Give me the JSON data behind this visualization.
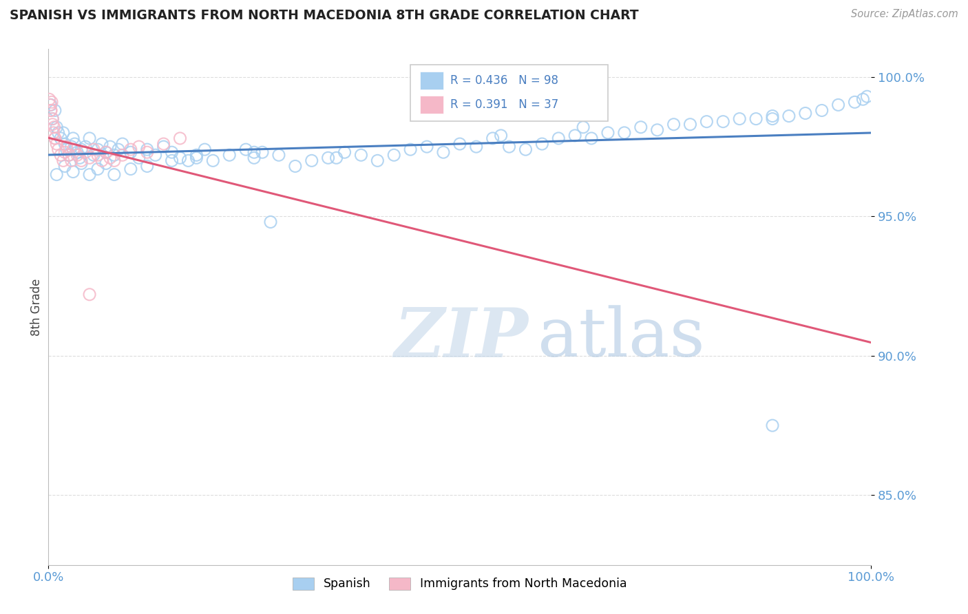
{
  "title": "SPANISH VS IMMIGRANTS FROM NORTH MACEDONIA 8TH GRADE CORRELATION CHART",
  "source_text": "Source: ZipAtlas.com",
  "ylabel": "8th Grade",
  "watermark_zip": "ZIP",
  "watermark_atlas": "atlas",
  "xlim": [
    0.0,
    100.0
  ],
  "ylim": [
    82.5,
    101.0
  ],
  "yticks": [
    85.0,
    90.0,
    95.0,
    100.0
  ],
  "xticks": [
    0.0,
    100.0
  ],
  "legend_r_blue": "R = 0.436",
  "legend_n_blue": "N = 98",
  "legend_r_pink": "R = 0.391",
  "legend_n_pink": "N = 37",
  "blue_color": "#A8CFF0",
  "pink_color": "#F5B8C8",
  "blue_line_color": "#4A7FC1",
  "pink_line_color": "#E05878",
  "title_color": "#222222",
  "axis_label_color": "#444444",
  "tick_color": "#5B9BD5",
  "grid_color": "#DDDDDD",
  "watermark_zip_color": "#C0D4E8",
  "watermark_atlas_color": "#A8C4E0",
  "blue_x": [
    0.3,
    0.5,
    0.8,
    1.0,
    1.2,
    1.5,
    1.8,
    2.0,
    2.2,
    2.5,
    2.8,
    3.0,
    3.2,
    3.5,
    3.8,
    4.0,
    4.5,
    5.0,
    5.5,
    6.0,
    6.5,
    7.0,
    7.5,
    8.0,
    8.5,
    9.0,
    10.0,
    11.0,
    12.0,
    13.0,
    14.0,
    15.0,
    16.0,
    17.0,
    18.0,
    19.0,
    20.0,
    22.0,
    24.0,
    25.0,
    26.0,
    28.0,
    30.0,
    32.0,
    34.0,
    36.0,
    38.0,
    40.0,
    42.0,
    44.0,
    46.0,
    48.0,
    50.0,
    52.0,
    54.0,
    56.0,
    58.0,
    60.0,
    62.0,
    64.0,
    66.0,
    68.0,
    70.0,
    72.0,
    74.0,
    76.0,
    78.0,
    80.0,
    82.0,
    84.0,
    86.0,
    88.0,
    90.0,
    92.0,
    94.0,
    96.0,
    98.0,
    99.0,
    99.5,
    1.0,
    2.0,
    3.0,
    4.0,
    5.0,
    6.0,
    7.0,
    8.0,
    10.0,
    12.0,
    15.0,
    18.0,
    25.0,
    35.0,
    55.0,
    65.0,
    88.0,
    27.0,
    88.0
  ],
  "blue_y": [
    99.0,
    98.5,
    98.8,
    98.2,
    98.0,
    97.8,
    98.0,
    97.6,
    97.4,
    97.2,
    97.5,
    97.8,
    97.6,
    97.3,
    97.1,
    97.4,
    97.5,
    97.8,
    97.2,
    97.4,
    97.6,
    97.3,
    97.5,
    97.2,
    97.4,
    97.6,
    97.3,
    97.1,
    97.4,
    97.2,
    97.5,
    97.3,
    97.1,
    97.0,
    97.2,
    97.4,
    97.0,
    97.2,
    97.4,
    97.1,
    97.3,
    97.2,
    96.8,
    97.0,
    97.1,
    97.3,
    97.2,
    97.0,
    97.2,
    97.4,
    97.5,
    97.3,
    97.6,
    97.5,
    97.8,
    97.5,
    97.4,
    97.6,
    97.8,
    97.9,
    97.8,
    98.0,
    98.0,
    98.2,
    98.1,
    98.3,
    98.3,
    98.4,
    98.4,
    98.5,
    98.5,
    98.6,
    98.6,
    98.7,
    98.8,
    99.0,
    99.1,
    99.2,
    99.3,
    96.5,
    96.8,
    96.6,
    96.9,
    96.5,
    96.7,
    96.9,
    96.5,
    96.7,
    96.8,
    97.0,
    97.1,
    97.3,
    97.1,
    97.9,
    98.2,
    98.5,
    94.8,
    87.5
  ],
  "pink_x": [
    0.1,
    0.2,
    0.3,
    0.4,
    0.5,
    0.6,
    0.7,
    0.8,
    1.0,
    1.2,
    1.5,
    1.8,
    2.0,
    2.2,
    2.5,
    2.8,
    3.0,
    3.5,
    4.0,
    4.5,
    5.0,
    5.5,
    6.0,
    6.5,
    7.0,
    7.5,
    8.0,
    9.0,
    10.0,
    11.0,
    12.0,
    14.0,
    16.0,
    0.3,
    0.5,
    0.8,
    5.0
  ],
  "pink_y": [
    99.2,
    99.0,
    98.8,
    99.1,
    98.5,
    98.0,
    98.2,
    97.8,
    97.6,
    97.4,
    97.2,
    97.0,
    97.3,
    97.5,
    97.2,
    97.0,
    97.4,
    97.2,
    97.0,
    97.3,
    97.1,
    97.4,
    97.2,
    97.0,
    97.3,
    97.1,
    97.0,
    97.2,
    97.4,
    97.5,
    97.3,
    97.6,
    97.8,
    98.8,
    98.3,
    97.8,
    92.2
  ]
}
